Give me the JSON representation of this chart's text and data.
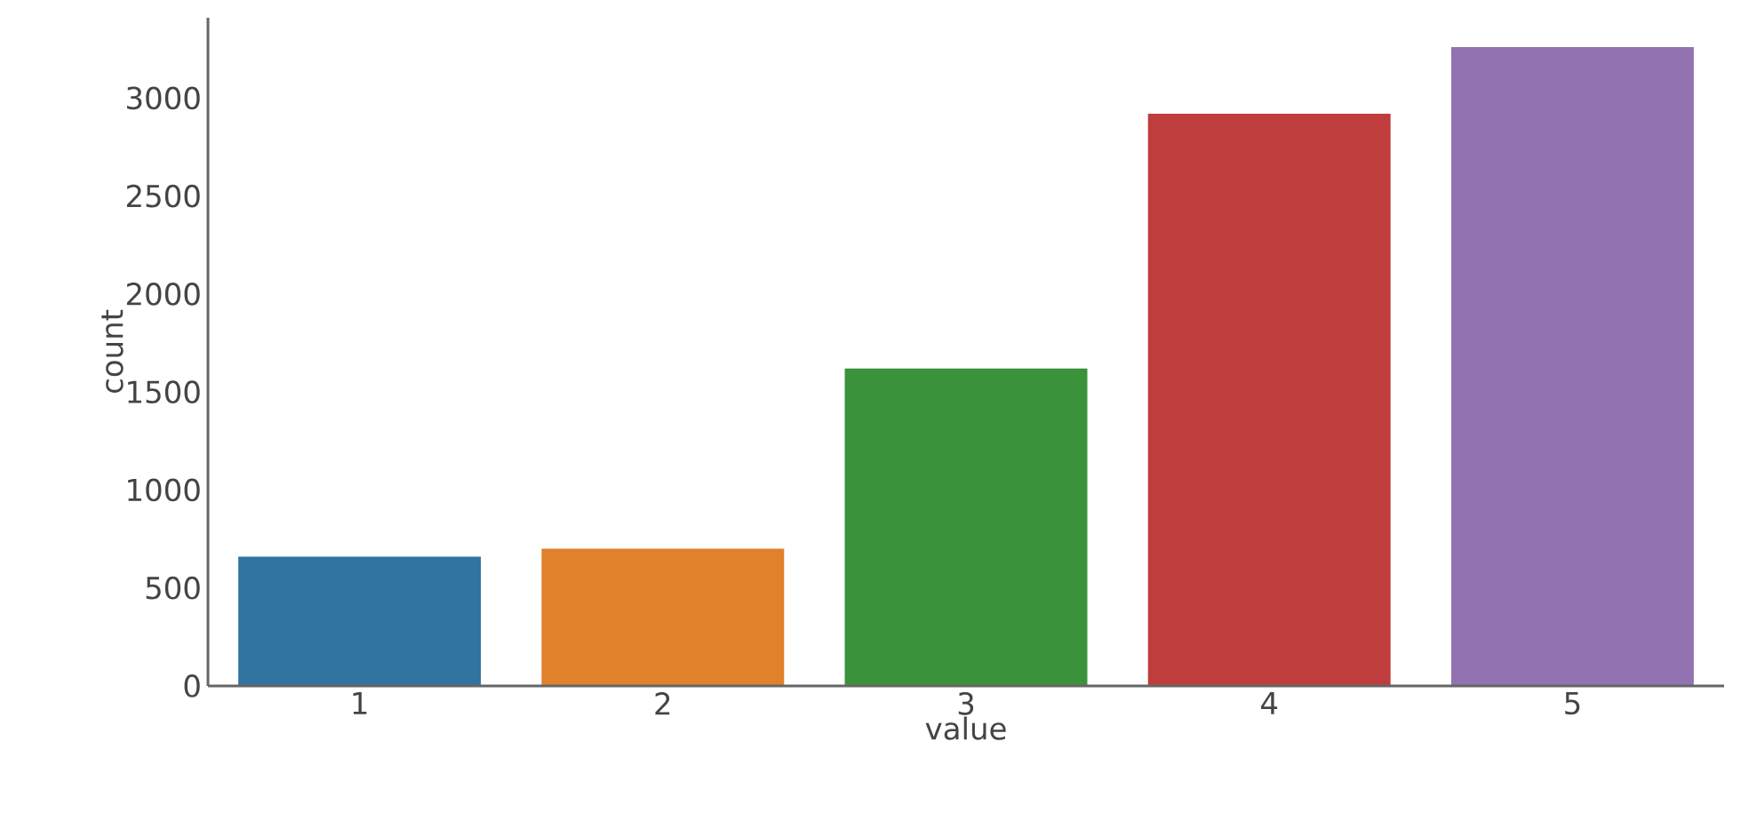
{
  "chart_data": {
    "type": "bar",
    "xlabel": "value",
    "ylabel": "count",
    "categories": [
      "1",
      "2",
      "3",
      "4",
      "5"
    ],
    "values": [
      660,
      700,
      1620,
      2920,
      3260
    ],
    "colors": [
      "#3274a1",
      "#e1812c",
      "#3a923a",
      "#c03d3e",
      "#9372b2"
    ],
    "ylim": [
      0,
      3410
    ],
    "yticks": [
      0,
      500,
      1000,
      1500,
      2000,
      2500,
      3000
    ],
    "grid": false
  }
}
